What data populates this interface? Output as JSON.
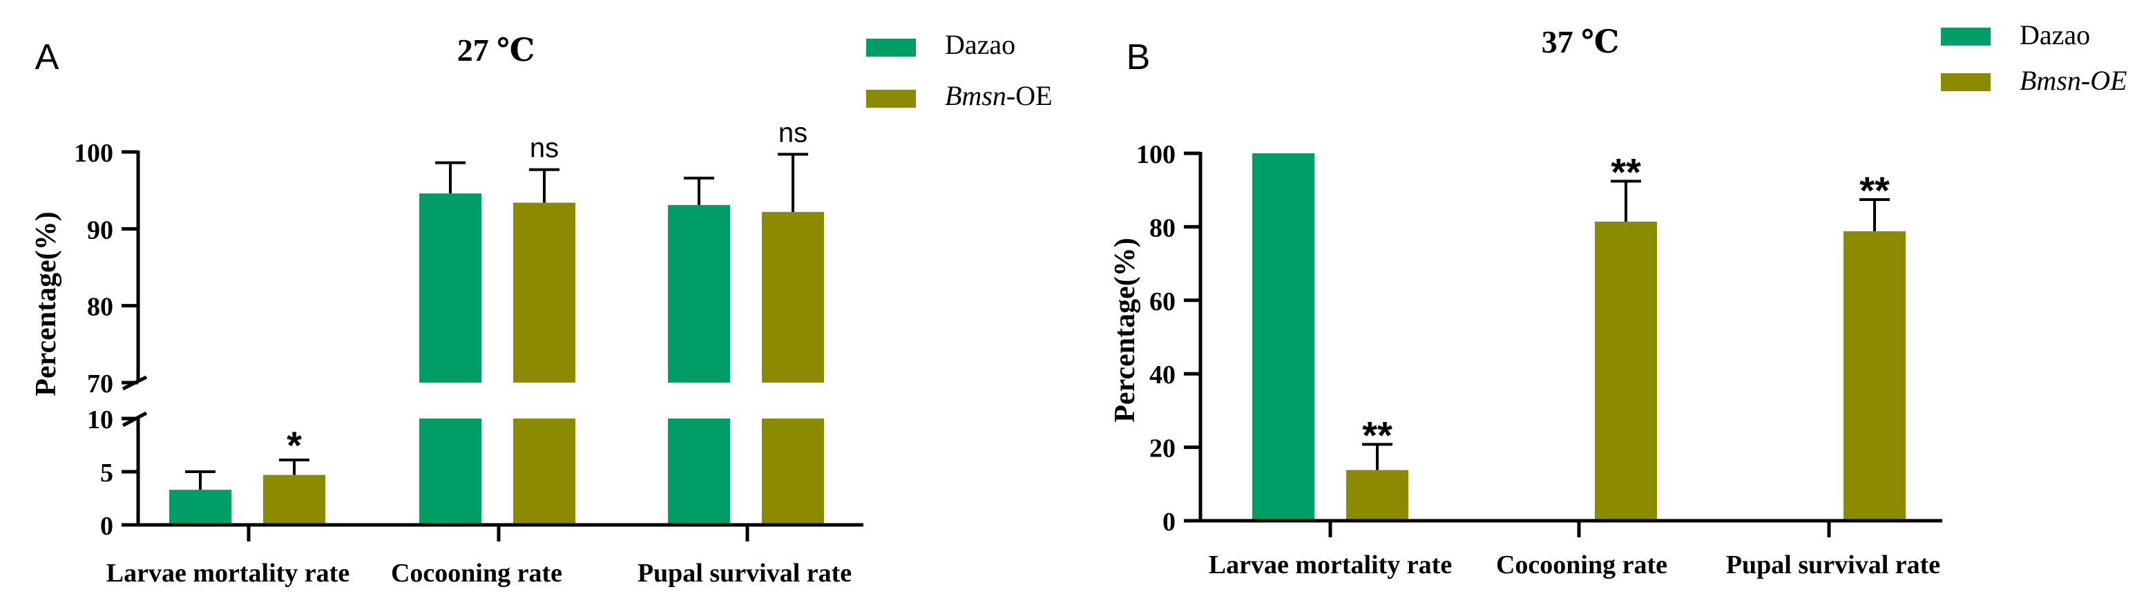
{
  "colors": {
    "dazao": "#009e67",
    "oe": "#8c8a00",
    "axis": "#000000"
  },
  "chart_data": [
    {
      "panel_label": "A",
      "type": "bar",
      "title": "27 ℃",
      "ylabel": "Percentage(%)",
      "xlabel": "",
      "categories": [
        "Larvae mortality rate",
        "Cocooning rate",
        "Pupal survival rate"
      ],
      "series": [
        {
          "name": "Dazao",
          "name_plain": "Dazao",
          "values": [
            3.3,
            94.6,
            93.1
          ],
          "errors": [
            1.7,
            4.0,
            3.5
          ]
        },
        {
          "name": "Bmsn-OE",
          "name_italic": "Bmsn",
          "name_plain": "-OE",
          "values": [
            4.7,
            93.4,
            92.2
          ],
          "errors": [
            1.4,
            4.3,
            7.5
          ]
        }
      ],
      "significance": [
        {
          "category": 0,
          "series": 1,
          "mark": "*"
        },
        {
          "category": 1,
          "series": 1,
          "mark": "ns"
        },
        {
          "category": 2,
          "series": 1,
          "mark": "ns"
        }
      ],
      "y_axis_broken": true,
      "ylim_lower": [
        0,
        10
      ],
      "ylim_upper": [
        70,
        100
      ],
      "yticks_lower": [
        "0",
        "5",
        "10"
      ],
      "yticks_upper": [
        "70",
        "80",
        "90",
        "100"
      ],
      "legend": "top-right"
    },
    {
      "panel_label": "B",
      "type": "bar",
      "title": "37 ℃",
      "ylabel": "Percentage(%)",
      "xlabel": "",
      "categories": [
        "Larvae mortality rate",
        "Cocooning rate",
        "Pupal survival rate"
      ],
      "series": [
        {
          "name": "Dazao",
          "name_plain": "Dazao",
          "values": [
            100,
            0,
            0
          ],
          "errors": [
            0,
            0,
            0
          ]
        },
        {
          "name": "Bmsn-OE",
          "name_italic": "Bmsn-OE",
          "name_plain": "",
          "values": [
            13.8,
            81.4,
            78.8
          ],
          "errors": [
            7.0,
            11.0,
            8.6
          ]
        }
      ],
      "significance": [
        {
          "category": 0,
          "series": 1,
          "mark": "**"
        },
        {
          "category": 1,
          "series": 1,
          "mark": "**"
        },
        {
          "category": 2,
          "series": 1,
          "mark": "**"
        }
      ],
      "y_axis_broken": false,
      "ylim": [
        0,
        100
      ],
      "yticks": [
        "0",
        "20",
        "40",
        "60",
        "80",
        "100"
      ],
      "legend": "top-right"
    }
  ]
}
